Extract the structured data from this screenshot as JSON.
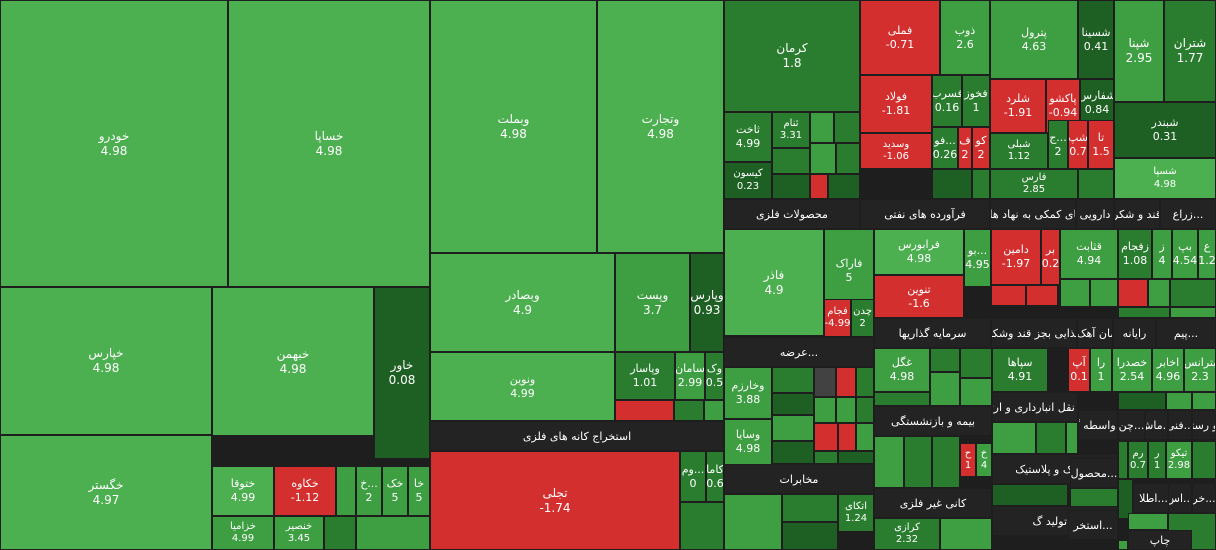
{
  "chart_data": {
    "type": "treemap",
    "title": "",
    "colors": {
      "positive_bright": "#4caf50",
      "positive_mid": "#3d9e42",
      "positive_dark": "#2a7d2f",
      "positive_darkest": "#1e5f23",
      "negative": "#d32f2f",
      "neutral": "#424242",
      "group_header": "#232323"
    },
    "groups": [
      "استخراج کانه های فلزی",
      "محصولات فلزی",
      "فرآورده های نفتی",
      "فعالیتهای کمکی به نهاد های مال",
      "دارویی",
      "قند و شکر",
      "زراع...",
      "عرضه...",
      "سرمایه گذاریها",
      "غذایی بجز قند وشکر",
      "سیمان آهک گچ",
      "رایانه",
      "پیم...",
      "مخابرات",
      "بیمه و بازنشستگی",
      "حمل و نقل انبارداری و ارتباطات",
      "واسطه گ...",
      "چن...",
      "ماش...",
      "فنی...",
      "هتل و رستوران",
      "لاستیک و پلاستیک",
      "محصول...",
      "کانی غیر فلزی",
      "تولید گ...",
      "استخر...",
      "اطلا...",
      "اس...",
      "خر...",
      "چاپ"
    ],
    "tiles": [
      {
        "name": "خودرو",
        "value": 4.98
      },
      {
        "name": "خساپا",
        "value": 4.98
      },
      {
        "name": "خپارس",
        "value": 4.98
      },
      {
        "name": "خبهمن",
        "value": 4.98
      },
      {
        "name": "خاور",
        "value": 0.08
      },
      {
        "name": "خگستر",
        "value": 4.97
      },
      {
        "name": "ختوقا",
        "value": 4.99
      },
      {
        "name": "خکاوه",
        "value": -1.12
      },
      {
        "name": "خ...",
        "value": 2.0
      },
      {
        "name": "خک",
        "value": 5.0
      },
      {
        "name": "خا",
        "value": 5.0
      },
      {
        "name": "خزامیا",
        "value": 4.99
      },
      {
        "name": "خنصیر",
        "value": 3.45
      },
      {
        "name": "وبملت",
        "value": 4.98
      },
      {
        "name": "وتجارت",
        "value": 4.98
      },
      {
        "name": "وبصادر",
        "value": 4.9
      },
      {
        "name": "وپست",
        "value": 3.7
      },
      {
        "name": "وپارس",
        "value": 0.93
      },
      {
        "name": "ونوین",
        "value": 4.99
      },
      {
        "name": "وپاسار",
        "value": 1.01
      },
      {
        "name": "سامان",
        "value": 2.99
      },
      {
        "name": "وک",
        "value": 0.5
      },
      {
        "name": "فملی",
        "value": -0.71
      },
      {
        "name": "ذوب",
        "value": 2.6
      },
      {
        "name": "فولاد",
        "value": -1.81
      },
      {
        "name": "فسرب",
        "value": 0.16
      },
      {
        "name": "فخوز",
        "value": 1.0
      },
      {
        "name": "وسدید",
        "value": -1.06
      },
      {
        "name": "فو...",
        "value": 0.26
      },
      {
        "name": "ف",
        "value": 2.0
      },
      {
        "name": "کو",
        "value": 2.0
      },
      {
        "name": "تجلی",
        "value": -1.74
      },
      {
        "name": "وم...",
        "value": 0.0
      },
      {
        "name": "کاما",
        "value": 0.6
      },
      {
        "name": "کرمان",
        "value": 1.8
      },
      {
        "name": "ثنام",
        "value": 3.31
      },
      {
        "name": "ثاخت",
        "value": 4.99
      },
      {
        "name": "کیسون",
        "value": 0.23
      },
      {
        "name": "پترول",
        "value": 4.63
      },
      {
        "name": "شسینا",
        "value": 0.41
      },
      {
        "name": "شپنا",
        "value": 2.95
      },
      {
        "name": "شتران",
        "value": 1.77
      },
      {
        "name": "شلرد",
        "value": -1.91
      },
      {
        "name": "پاکشو",
        "value": -0.94
      },
      {
        "name": "شفارس",
        "value": 0.84
      },
      {
        "name": "شبلی",
        "value": 1.12
      },
      {
        "name": "ج...",
        "value": 2.0
      },
      {
        "name": "شپ",
        "value": 0.7
      },
      {
        "name": "تا",
        "value": 1.5
      },
      {
        "name": "شبندر",
        "value": 0.31
      },
      {
        "name": "فارس",
        "value": 2.85
      },
      {
        "name": "شسپا",
        "value": 4.98
      },
      {
        "name": "فاذر",
        "value": 4.9
      },
      {
        "name": "فاراک",
        "value": 5.0
      },
      {
        "name": "فرابورس",
        "value": 4.98
      },
      {
        "name": "بو...",
        "value": 4.95
      },
      {
        "name": "تنوین",
        "value": -1.6
      },
      {
        "name": "فجام",
        "value": -4.99
      },
      {
        "name": "چدن",
        "value": 2.0
      },
      {
        "name": "دامین",
        "value": -1.97
      },
      {
        "name": "بر",
        "value": 0.2
      },
      {
        "name": "قثابت",
        "value": 4.94
      },
      {
        "name": "زفجام",
        "value": 1.08
      },
      {
        "name": "ز",
        "value": 4.0
      },
      {
        "name": "بپ",
        "value": 4.54
      },
      {
        "name": "ع",
        "value": 1.2
      },
      {
        "name": "وخارزم",
        "value": 3.88
      },
      {
        "name": "وسایا",
        "value": 4.98
      },
      {
        "name": "غگل",
        "value": 4.98
      },
      {
        "name": "سپاها",
        "value": 4.91
      },
      {
        "name": "آپ",
        "value": 0.1
      },
      {
        "name": "را",
        "value": 1.0
      },
      {
        "name": "خصدرا",
        "value": 2.54
      },
      {
        "name": "اخابر",
        "value": 4.96
      },
      {
        "name": "بترانس",
        "value": 2.3
      },
      {
        "name": "اتکای",
        "value": 1.24
      },
      {
        "name": "ح",
        "value": 1.0
      },
      {
        "name": "خ",
        "value": 4.0
      },
      {
        "name": "رم",
        "value": 0.7
      },
      {
        "name": "ر",
        "value": 1.0
      },
      {
        "name": "تیکو",
        "value": 2.98
      },
      {
        "name": "کرازی",
        "value": 2.32
      }
    ]
  }
}
